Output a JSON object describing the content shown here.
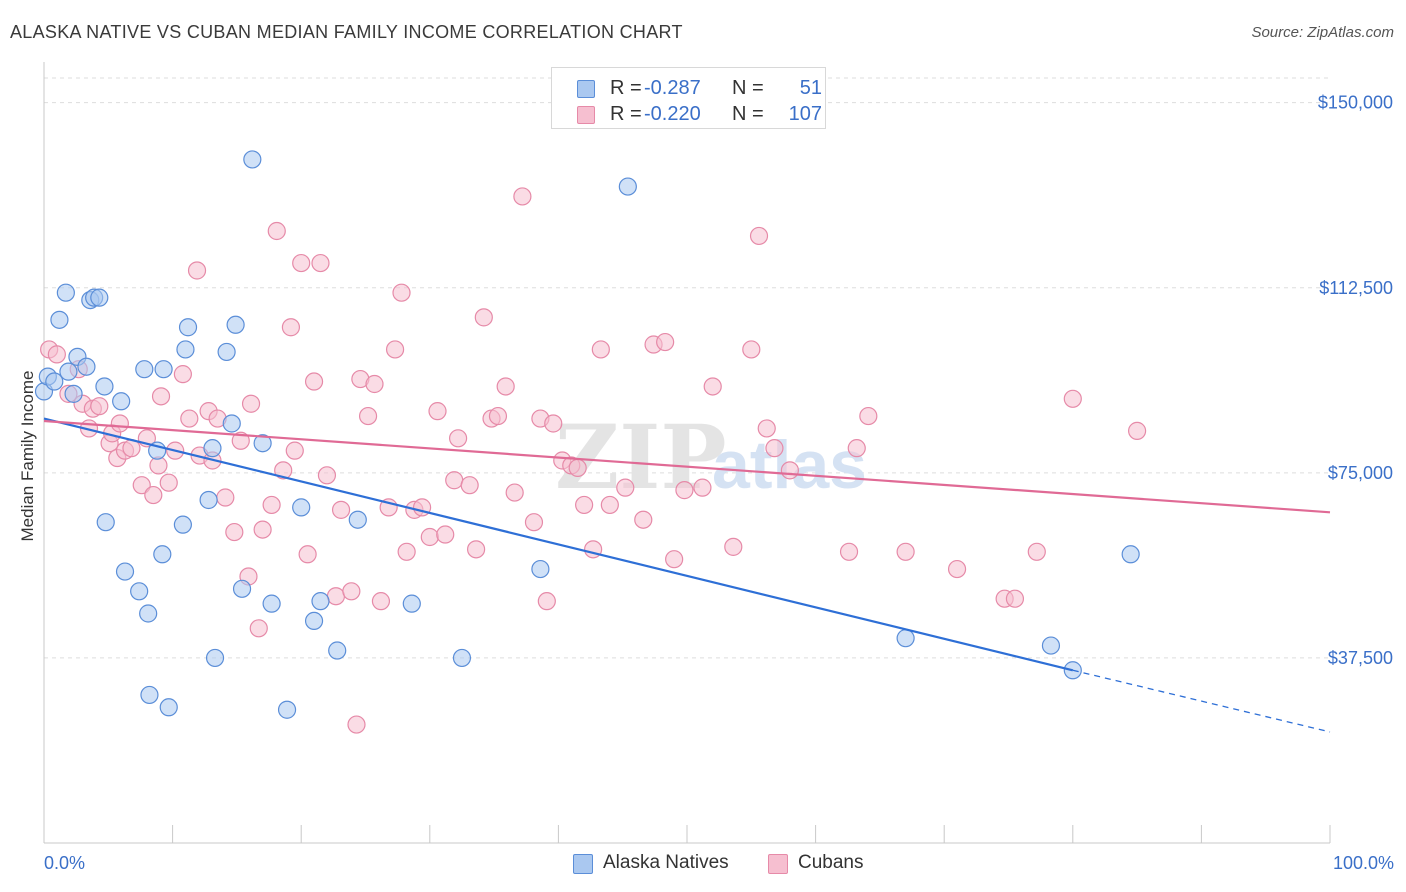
{
  "header": {
    "title": "ALASKA NATIVE VS CUBAN MEDIAN FAMILY INCOME CORRELATION CHART",
    "source": "Source: ZipAtlas.com"
  },
  "legend": {
    "series1": {
      "r_label": "R =",
      "r_value": "-0.287",
      "n_label": "N =",
      "n_value": "51"
    },
    "series2": {
      "r_label": "R =",
      "r_value": "-0.220",
      "n_label": "N =",
      "n_value": "107"
    }
  },
  "watermark": {
    "zip": "ZIP",
    "atlas": "atlas"
  },
  "colors": {
    "blue_fill": "#aac8f0",
    "blue_stroke": "#5b8ed8",
    "blue_line": "#2e6fd6",
    "pink_fill": "#f6bfd0",
    "pink_stroke": "#e68aa8",
    "pink_line": "#e06a95",
    "axis_label": "#3a6fc8",
    "grid": "#dddddd"
  },
  "chart_data": {
    "type": "scatter",
    "title": "ALASKA NATIVE VS CUBAN MEDIAN FAMILY INCOME CORRELATION CHART",
    "xlabel": "",
    "ylabel": "Median Family Income",
    "xlim": [
      0,
      100
    ],
    "ylim": [
      0,
      155000
    ],
    "x_tick_labels": {
      "min": "0.0%",
      "max": "100.0%"
    },
    "y_ticks": [
      {
        "value": 37500,
        "label": "$37,500"
      },
      {
        "value": 75000,
        "label": "$75,000"
      },
      {
        "value": 112500,
        "label": "$112,500"
      },
      {
        "value": 150000,
        "label": "$150,000"
      }
    ],
    "grid": true,
    "legend_position": "bottom-center",
    "series": [
      {
        "name": "Alaska Natives",
        "r": -0.287,
        "n": 51,
        "trend": {
          "x0": 0,
          "y0": 86000,
          "x1": 80,
          "y1": 35000,
          "dash_to_x": 100,
          "dash_to_y": 22500
        },
        "points": [
          [
            0,
            91500
          ],
          [
            0.3,
            94500
          ],
          [
            0.8,
            93500
          ],
          [
            1.2,
            106000
          ],
          [
            1.7,
            111500
          ],
          [
            1.9,
            95500
          ],
          [
            2.3,
            91000
          ],
          [
            2.6,
            98500
          ],
          [
            3.3,
            96500
          ],
          [
            3.6,
            110000
          ],
          [
            3.9,
            110500
          ],
          [
            4.3,
            110500
          ],
          [
            4.7,
            92500
          ],
          [
            4.8,
            65000
          ],
          [
            6.0,
            89500
          ],
          [
            6.3,
            55000
          ],
          [
            7.4,
            51000
          ],
          [
            7.8,
            96000
          ],
          [
            8.1,
            46500
          ],
          [
            8.2,
            30000
          ],
          [
            8.8,
            79500
          ],
          [
            9.2,
            58500
          ],
          [
            9.3,
            96000
          ],
          [
            9.7,
            27500
          ],
          [
            10.8,
            64500
          ],
          [
            11.0,
            100000
          ],
          [
            11.2,
            104500
          ],
          [
            12.8,
            69500
          ],
          [
            13.1,
            80000
          ],
          [
            13.3,
            37500
          ],
          [
            14.2,
            99500
          ],
          [
            14.6,
            85000
          ],
          [
            14.9,
            105000
          ],
          [
            15.4,
            51500
          ],
          [
            16.2,
            138500
          ],
          [
            17.0,
            81000
          ],
          [
            17.7,
            48500
          ],
          [
            18.9,
            27000
          ],
          [
            20.0,
            68000
          ],
          [
            21.0,
            45000
          ],
          [
            21.5,
            49000
          ],
          [
            22.8,
            39000
          ],
          [
            24.4,
            65500
          ],
          [
            28.6,
            48500
          ],
          [
            32.5,
            37500
          ],
          [
            38.6,
            55500
          ],
          [
            45.4,
            133000
          ],
          [
            67.0,
            41500
          ],
          [
            78.3,
            40000
          ],
          [
            80.0,
            35000
          ],
          [
            84.5,
            58500
          ]
        ]
      },
      {
        "name": "Cubans",
        "r": -0.22,
        "n": 107,
        "trend": {
          "x0": 0,
          "y0": 85500,
          "x1": 100,
          "y1": 67000
        },
        "points": [
          [
            0.4,
            100000
          ],
          [
            1.0,
            99000
          ],
          [
            1.9,
            91000
          ],
          [
            2.7,
            96000
          ],
          [
            3.0,
            89000
          ],
          [
            3.5,
            84000
          ],
          [
            3.8,
            88000
          ],
          [
            4.3,
            88500
          ],
          [
            5.1,
            81000
          ],
          [
            5.3,
            83000
          ],
          [
            5.7,
            78000
          ],
          [
            5.9,
            85000
          ],
          [
            6.3,
            79500
          ],
          [
            6.8,
            80000
          ],
          [
            7.6,
            72500
          ],
          [
            8.0,
            82000
          ],
          [
            8.5,
            70500
          ],
          [
            8.9,
            76500
          ],
          [
            9.1,
            90500
          ],
          [
            9.7,
            73000
          ],
          [
            10.2,
            79500
          ],
          [
            10.8,
            95000
          ],
          [
            11.3,
            86000
          ],
          [
            11.9,
            116000
          ],
          [
            12.1,
            78500
          ],
          [
            12.8,
            87500
          ],
          [
            13.1,
            77500
          ],
          [
            13.5,
            86000
          ],
          [
            14.1,
            70000
          ],
          [
            14.8,
            63000
          ],
          [
            15.3,
            81500
          ],
          [
            15.9,
            54000
          ],
          [
            16.1,
            89000
          ],
          [
            16.7,
            43500
          ],
          [
            17.0,
            63500
          ],
          [
            17.7,
            68500
          ],
          [
            18.1,
            124000
          ],
          [
            18.6,
            75500
          ],
          [
            19.2,
            104500
          ],
          [
            19.5,
            79500
          ],
          [
            20.0,
            117500
          ],
          [
            20.5,
            58500
          ],
          [
            21.0,
            93500
          ],
          [
            21.5,
            117500
          ],
          [
            22.0,
            74500
          ],
          [
            22.7,
            50000
          ],
          [
            23.1,
            67500
          ],
          [
            23.9,
            51000
          ],
          [
            24.3,
            24000
          ],
          [
            24.6,
            94000
          ],
          [
            25.2,
            86500
          ],
          [
            25.7,
            93000
          ],
          [
            26.2,
            49000
          ],
          [
            26.8,
            68000
          ],
          [
            27.3,
            100000
          ],
          [
            27.8,
            111500
          ],
          [
            28.2,
            59000
          ],
          [
            28.8,
            67500
          ],
          [
            29.4,
            68000
          ],
          [
            30.0,
            62000
          ],
          [
            30.6,
            87500
          ],
          [
            31.2,
            62500
          ],
          [
            31.9,
            73500
          ],
          [
            32.2,
            82000
          ],
          [
            33.1,
            72500
          ],
          [
            33.6,
            59500
          ],
          [
            34.2,
            106500
          ],
          [
            34.8,
            86000
          ],
          [
            35.3,
            86500
          ],
          [
            35.9,
            92500
          ],
          [
            36.6,
            71000
          ],
          [
            37.2,
            131000
          ],
          [
            38.1,
            65000
          ],
          [
            38.6,
            86000
          ],
          [
            39.1,
            49000
          ],
          [
            39.6,
            85000
          ],
          [
            40.3,
            77500
          ],
          [
            41.0,
            76500
          ],
          [
            41.5,
            76000
          ],
          [
            42.0,
            68500
          ],
          [
            42.7,
            59500
          ],
          [
            43.3,
            100000
          ],
          [
            44.0,
            68500
          ],
          [
            45.2,
            72000
          ],
          [
            46.6,
            65500
          ],
          [
            47.4,
            101000
          ],
          [
            48.3,
            101500
          ],
          [
            49.0,
            57500
          ],
          [
            49.8,
            71500
          ],
          [
            51.2,
            72000
          ],
          [
            52.0,
            92500
          ],
          [
            53.6,
            60000
          ],
          [
            55.0,
            100000
          ],
          [
            55.6,
            123000
          ],
          [
            56.2,
            84000
          ],
          [
            56.8,
            80000
          ],
          [
            58.0,
            75500
          ],
          [
            62.6,
            59000
          ],
          [
            63.2,
            80000
          ],
          [
            64.1,
            86500
          ],
          [
            67.0,
            59000
          ],
          [
            71.0,
            55500
          ],
          [
            74.7,
            49500
          ],
          [
            75.5,
            49500
          ],
          [
            77.2,
            59000
          ],
          [
            80.0,
            90000
          ],
          [
            85.0,
            83500
          ]
        ]
      }
    ]
  }
}
